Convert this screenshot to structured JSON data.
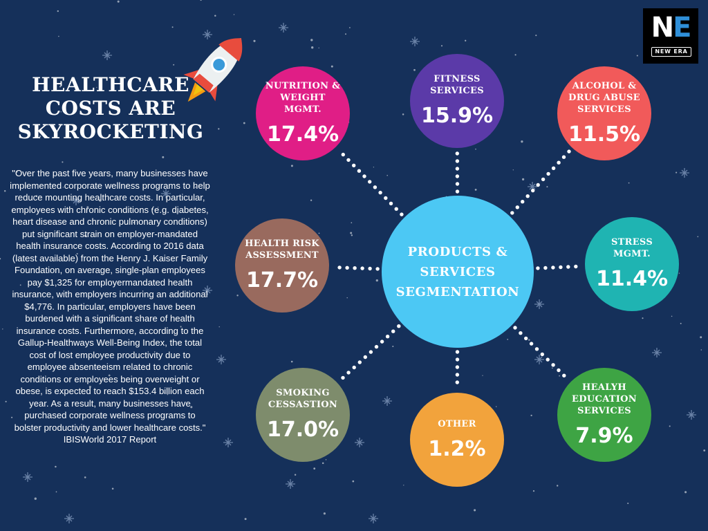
{
  "heading": {
    "line1": "HEALTHCARE",
    "line2": "COSTS ARE",
    "line3": "SKYROCKETING"
  },
  "quote": "\"Over the past five years, many businesses have implemented corporate wellness programs to help reduce mounting healthcare costs. In particular, employees with chronic conditions (e.g. diabetes, heart disease and chronic pulmonary conditions) put significant strain on employer-mandated health insurance costs. According to 2016 data (latest available) from the Henry J. Kaiser Family Foundation, on average, single-plan employees pay $1,325 for employermandated health insurance, with employers incurring an additional $4,776. In particular, employers have been burdened with a significant share of health insurance costs. Furthermore, according to the Gallup-Healthways Well-Being Index, the total cost of lost employee productivity due to employee absenteeism related to chronic conditions or employees being overweight or obese, is expected to reach $153.4 billion each year. As a result, many businesses have purchased corporate wellness programs to bolster productivity and lower healthcare costs.\" IBISWorld 2017 Report",
  "logo": {
    "initial": "N",
    "accent": "E",
    "wordmark": "NEW ERA"
  },
  "center": {
    "label": "PRODUCTS &\nSERVICES\nSEGMENTATION",
    "color": "#4cc8f4"
  },
  "segments": [
    {
      "label": "FITNESS\nSERVICES",
      "value": "15.9%",
      "color": "#5b3aa8"
    },
    {
      "label": "ALCOHOL &\nDRUG ABUSE\nSERVICES",
      "value": "11.5%",
      "color": "#f15a5a"
    },
    {
      "label": "STRESS\nMGMT.",
      "value": "11.4%",
      "color": "#1fb4b2"
    },
    {
      "label": "HEALYH\nEDUCATION\nSERVICES",
      "value": "7.9%",
      "color": "#3ea444"
    },
    {
      "label": "OTHER",
      "value": "1.2%",
      "color": "#f2a33c"
    },
    {
      "label": "SMOKING\nCESSASTION",
      "value": "17.0%",
      "color": "#7e8c6c"
    },
    {
      "label": "HEALTH RISK\nASSESSMENT",
      "value": "17.7%",
      "color": "#996a5e"
    },
    {
      "label": "NUTRITION &\nWEIGHT\nMGMT.",
      "value": "17.4%",
      "color": "#e01e86"
    }
  ]
}
